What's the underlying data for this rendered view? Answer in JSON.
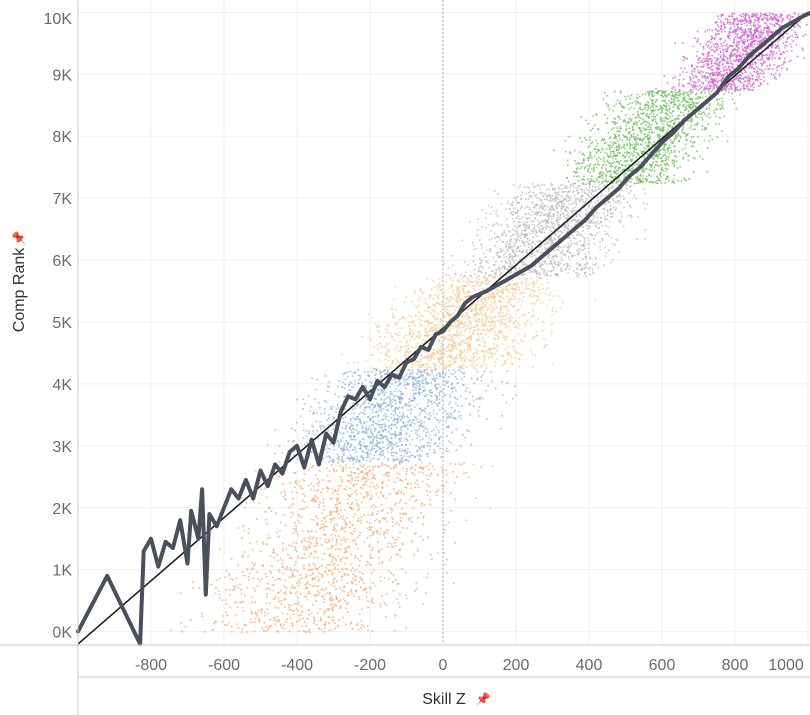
{
  "chart_data": {
    "type": "scatter",
    "xlabel": "Skill Z",
    "ylabel": "Comp Rank",
    "xlim": [
      -1000,
      1000
    ],
    "ylim": [
      -200,
      10200
    ],
    "x_ticks": [
      -800,
      -600,
      -400,
      -200,
      0,
      200,
      400,
      600,
      800,
      1000
    ],
    "x_tick_labels": [
      "-800",
      "-600",
      "-400",
      "-200",
      "0",
      "200",
      "400",
      "600",
      "800",
      "1000"
    ],
    "y_ticks": [
      0,
      1000,
      2000,
      3000,
      4000,
      5000,
      6000,
      7000,
      8000,
      9000,
      10000
    ],
    "y_tick_labels": [
      "0K",
      "1K",
      "2K",
      "3K",
      "4K",
      "5K",
      "6K",
      "7K",
      "8K",
      "9K",
      "10K"
    ],
    "grid": true,
    "zero_reference_line": true,
    "tier_bands": [
      {
        "color": "#f2a36c",
        "rank_min": 0,
        "rank_max": 2750,
        "x_center": -300,
        "x_spread": 240
      },
      {
        "color": "#8db0d6",
        "rank_min": 2750,
        "rank_max": 4250,
        "x_center": -150,
        "x_spread": 200
      },
      {
        "color": "#f4c68c",
        "rank_min": 4250,
        "rank_max": 5750,
        "x_center": 60,
        "x_spread": 190
      },
      {
        "color": "#b8b8b8",
        "rank_min": 5750,
        "rank_max": 7250,
        "x_center": 300,
        "x_spread": 170
      },
      {
        "color": "#6fb85c",
        "rank_min": 7250,
        "rank_max": 8750,
        "x_center": 560,
        "x_spread": 150
      },
      {
        "color": "#cc66cc",
        "rank_min": 8750,
        "rank_max": 10000,
        "x_center": 820,
        "x_spread": 120
      }
    ],
    "trend_line": {
      "color": "#222222",
      "points": [
        {
          "x": -1000,
          "y": -200
        },
        {
          "x": 1000,
          "y": 10000
        }
      ]
    },
    "average_line": {
      "color": "#4a4f5c",
      "points": [
        {
          "x": -1000,
          "y": 0
        },
        {
          "x": -920,
          "y": 900
        },
        {
          "x": -830,
          "y": -200
        },
        {
          "x": -820,
          "y": 1300
        },
        {
          "x": -800,
          "y": 1500
        },
        {
          "x": -780,
          "y": 1050
        },
        {
          "x": -760,
          "y": 1450
        },
        {
          "x": -740,
          "y": 1350
        },
        {
          "x": -720,
          "y": 1800
        },
        {
          "x": -700,
          "y": 1100
        },
        {
          "x": -690,
          "y": 1950
        },
        {
          "x": -670,
          "y": 1500
        },
        {
          "x": -660,
          "y": 2300
        },
        {
          "x": -650,
          "y": 600
        },
        {
          "x": -640,
          "y": 1900
        },
        {
          "x": -620,
          "y": 1700
        },
        {
          "x": -600,
          "y": 2000
        },
        {
          "x": -580,
          "y": 2300
        },
        {
          "x": -560,
          "y": 2150
        },
        {
          "x": -540,
          "y": 2450
        },
        {
          "x": -520,
          "y": 2150
        },
        {
          "x": -500,
          "y": 2600
        },
        {
          "x": -480,
          "y": 2350
        },
        {
          "x": -460,
          "y": 2700
        },
        {
          "x": -440,
          "y": 2550
        },
        {
          "x": -420,
          "y": 2900
        },
        {
          "x": -400,
          "y": 3000
        },
        {
          "x": -380,
          "y": 2650
        },
        {
          "x": -360,
          "y": 3100
        },
        {
          "x": -340,
          "y": 2700
        },
        {
          "x": -320,
          "y": 3200
        },
        {
          "x": -300,
          "y": 3050
        },
        {
          "x": -280,
          "y": 3550
        },
        {
          "x": -260,
          "y": 3800
        },
        {
          "x": -240,
          "y": 3750
        },
        {
          "x": -220,
          "y": 3950
        },
        {
          "x": -200,
          "y": 3750
        },
        {
          "x": -180,
          "y": 4050
        },
        {
          "x": -160,
          "y": 3950
        },
        {
          "x": -140,
          "y": 4150
        },
        {
          "x": -120,
          "y": 4100
        },
        {
          "x": -100,
          "y": 4350
        },
        {
          "x": -80,
          "y": 4400
        },
        {
          "x": -60,
          "y": 4600
        },
        {
          "x": -40,
          "y": 4550
        },
        {
          "x": -20,
          "y": 4800
        },
        {
          "x": 0,
          "y": 4850
        },
        {
          "x": 20,
          "y": 5000
        },
        {
          "x": 40,
          "y": 5100
        },
        {
          "x": 60,
          "y": 5300
        },
        {
          "x": 80,
          "y": 5400
        },
        {
          "x": 100,
          "y": 5450
        },
        {
          "x": 120,
          "y": 5500
        },
        {
          "x": 150,
          "y": 5600
        },
        {
          "x": 180,
          "y": 5700
        },
        {
          "x": 210,
          "y": 5800
        },
        {
          "x": 240,
          "y": 5900
        },
        {
          "x": 270,
          "y": 6050
        },
        {
          "x": 300,
          "y": 6200
        },
        {
          "x": 330,
          "y": 6350
        },
        {
          "x": 360,
          "y": 6500
        },
        {
          "x": 390,
          "y": 6650
        },
        {
          "x": 420,
          "y": 6850
        },
        {
          "x": 450,
          "y": 7000
        },
        {
          "x": 480,
          "y": 7150
        },
        {
          "x": 510,
          "y": 7350
        },
        {
          "x": 540,
          "y": 7500
        },
        {
          "x": 570,
          "y": 7700
        },
        {
          "x": 600,
          "y": 7900
        },
        {
          "x": 630,
          "y": 8050
        },
        {
          "x": 660,
          "y": 8250
        },
        {
          "x": 690,
          "y": 8400
        },
        {
          "x": 720,
          "y": 8550
        },
        {
          "x": 750,
          "y": 8700
        },
        {
          "x": 780,
          "y": 8950
        },
        {
          "x": 810,
          "y": 9100
        },
        {
          "x": 840,
          "y": 9300
        },
        {
          "x": 870,
          "y": 9450
        },
        {
          "x": 900,
          "y": 9600
        },
        {
          "x": 930,
          "y": 9750
        },
        {
          "x": 960,
          "y": 9850
        },
        {
          "x": 990,
          "y": 9950
        },
        {
          "x": 1010,
          "y": 10000
        }
      ]
    }
  }
}
